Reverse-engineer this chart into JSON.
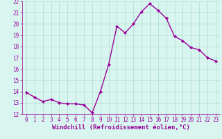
{
  "hours": [
    0,
    1,
    2,
    3,
    4,
    5,
    6,
    7,
    8,
    9,
    10,
    11,
    12,
    13,
    14,
    15,
    16,
    17,
    18,
    19,
    20,
    21,
    22,
    23
  ],
  "values": [
    13.9,
    13.5,
    13.1,
    13.3,
    13.0,
    12.9,
    12.9,
    12.8,
    12.1,
    14.0,
    16.4,
    19.8,
    19.2,
    20.0,
    21.1,
    21.8,
    21.2,
    20.5,
    18.9,
    18.5,
    17.9,
    17.7,
    17.0,
    16.7
  ],
  "line_color": "#990099",
  "marker": "D",
  "marker_size": 2,
  "bg_color": "#d8f5f0",
  "grid_color": "#aaddcc",
  "xlabel": "Windchill (Refroidissement éolien,°C)",
  "ylim": [
    12,
    22
  ],
  "xlim": [
    -0.5,
    23.5
  ],
  "yticks": [
    12,
    13,
    14,
    15,
    16,
    17,
    18,
    19,
    20,
    21,
    22
  ],
  "xticks": [
    0,
    1,
    2,
    3,
    4,
    5,
    6,
    7,
    8,
    9,
    10,
    11,
    12,
    13,
    14,
    15,
    16,
    17,
    18,
    19,
    20,
    21,
    22,
    23
  ],
  "tick_color": "#990099",
  "tick_fontsize": 5.5,
  "xlabel_fontsize": 6.5,
  "linewidth": 1.0
}
